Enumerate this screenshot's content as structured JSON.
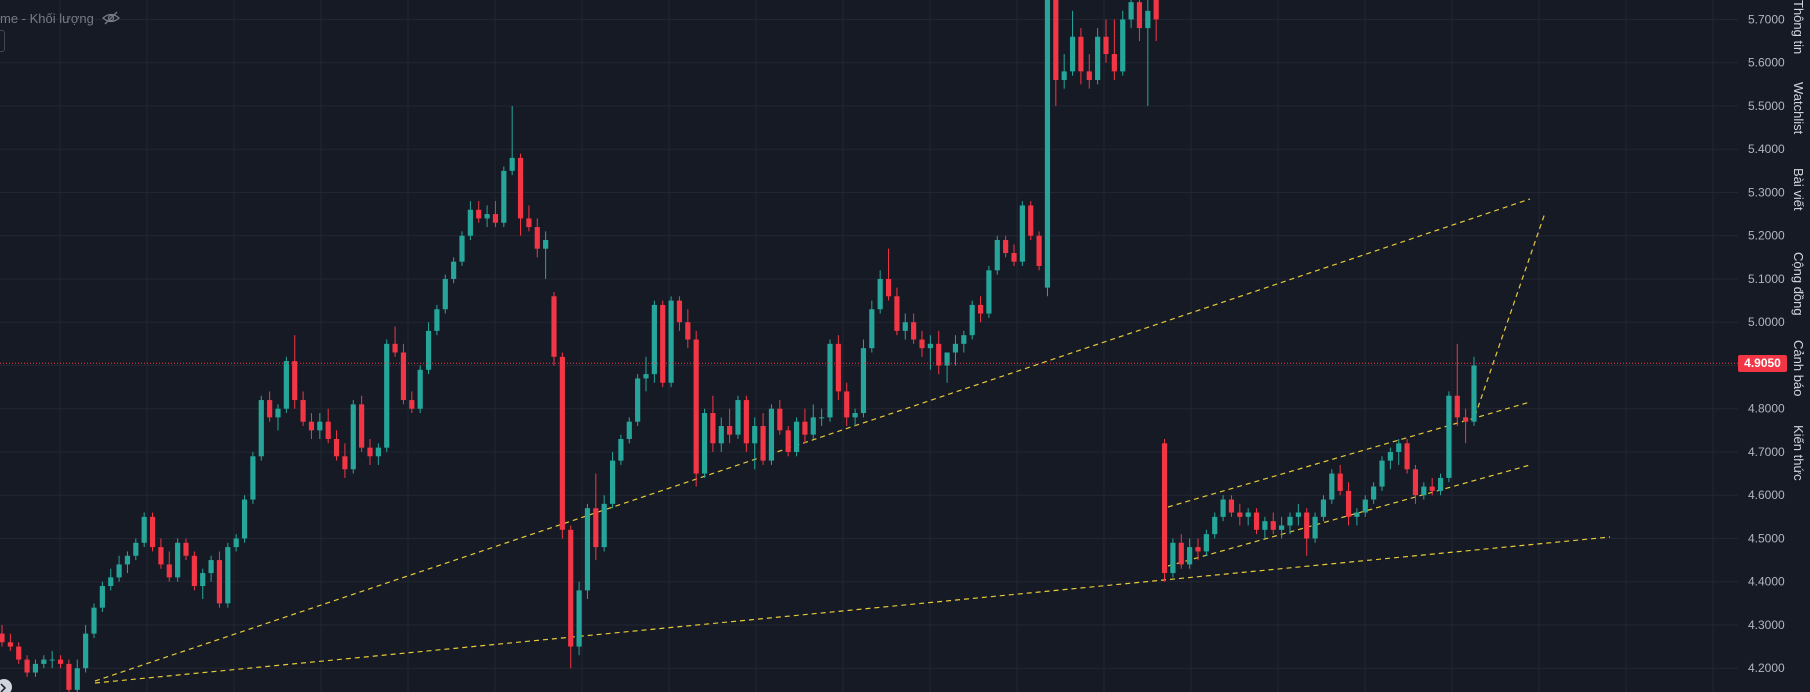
{
  "legend": {
    "label": "me - Khối lượng",
    "eye_icon": "eye-off-icon"
  },
  "sidebar": {
    "tabs": [
      {
        "label": "Thông tin"
      },
      {
        "label": "Watchlist"
      },
      {
        "label": "Bài viết"
      },
      {
        "label": "Cộng đồng"
      },
      {
        "label": "Cảnh báo"
      },
      {
        "label": "Kiến thức"
      }
    ]
  },
  "price_axis": {
    "current_price": "4.9050",
    "current_price_color": "#f23645"
  },
  "colors": {
    "up": "#26a69a",
    "down": "#f23645",
    "background": "#161a25",
    "drawing": "#e5c93a"
  },
  "chart_data": {
    "type": "candlestick",
    "title": "",
    "y_ticks": [
      "5.7000",
      "5.6000",
      "5.5000",
      "5.4000",
      "5.3000",
      "5.2000",
      "5.1000",
      "5.0000",
      "4.9000",
      "4.8000",
      "4.7000",
      "4.6000",
      "4.5000",
      "4.4000",
      "4.3000",
      "4.2000"
    ],
    "ylim": [
      4.145,
      5.745
    ],
    "grid": true,
    "last_price": 4.905,
    "candles": [
      [
        4.28,
        4.3,
        4.25,
        4.26
      ],
      [
        4.26,
        4.28,
        4.24,
        4.25
      ],
      [
        4.25,
        4.26,
        4.21,
        4.22
      ],
      [
        4.22,
        4.23,
        4.18,
        4.19
      ],
      [
        4.19,
        4.22,
        4.18,
        4.21
      ],
      [
        4.21,
        4.23,
        4.2,
        4.22
      ],
      [
        4.22,
        4.24,
        4.2,
        4.22
      ],
      [
        4.22,
        4.23,
        4.2,
        4.21
      ],
      [
        4.21,
        4.22,
        4.14,
        4.15
      ],
      [
        4.15,
        4.22,
        4.14,
        4.2
      ],
      [
        4.2,
        4.3,
        4.19,
        4.28
      ],
      [
        4.28,
        4.35,
        4.27,
        4.34
      ],
      [
        4.34,
        4.4,
        4.33,
        4.39
      ],
      [
        4.39,
        4.43,
        4.38,
        4.41
      ],
      [
        4.41,
        4.46,
        4.4,
        4.44
      ],
      [
        4.44,
        4.47,
        4.42,
        4.46
      ],
      [
        4.46,
        4.5,
        4.45,
        4.49
      ],
      [
        4.49,
        4.56,
        4.48,
        4.55
      ],
      [
        4.55,
        4.56,
        4.47,
        4.48
      ],
      [
        4.48,
        4.5,
        4.43,
        4.44
      ],
      [
        4.44,
        4.47,
        4.4,
        4.41
      ],
      [
        4.41,
        4.5,
        4.4,
        4.49
      ],
      [
        4.49,
        4.5,
        4.45,
        4.46
      ],
      [
        4.46,
        4.47,
        4.38,
        4.39
      ],
      [
        4.39,
        4.43,
        4.36,
        4.42
      ],
      [
        4.42,
        4.46,
        4.4,
        4.45
      ],
      [
        4.45,
        4.47,
        4.34,
        4.35
      ],
      [
        4.35,
        4.49,
        4.34,
        4.48
      ],
      [
        4.48,
        4.51,
        4.47,
        4.5
      ],
      [
        4.5,
        4.6,
        4.49,
        4.59
      ],
      [
        4.59,
        4.7,
        4.58,
        4.69
      ],
      [
        4.69,
        4.83,
        4.68,
        4.82
      ],
      [
        4.82,
        4.84,
        4.77,
        4.78
      ],
      [
        4.78,
        4.81,
        4.75,
        4.8
      ],
      [
        4.8,
        4.92,
        4.79,
        4.91
      ],
      [
        4.91,
        4.97,
        4.8,
        4.82
      ],
      [
        4.82,
        4.84,
        4.76,
        4.77
      ],
      [
        4.77,
        4.79,
        4.73,
        4.75
      ],
      [
        4.75,
        4.79,
        4.73,
        4.77
      ],
      [
        4.77,
        4.8,
        4.72,
        4.73
      ],
      [
        4.73,
        4.75,
        4.68,
        4.69
      ],
      [
        4.69,
        4.72,
        4.64,
        4.66
      ],
      [
        4.66,
        4.82,
        4.65,
        4.81
      ],
      [
        4.81,
        4.83,
        4.7,
        4.71
      ],
      [
        4.71,
        4.73,
        4.67,
        4.69
      ],
      [
        4.69,
        4.72,
        4.67,
        4.71
      ],
      [
        4.71,
        4.96,
        4.7,
        4.95
      ],
      [
        4.95,
        4.99,
        4.92,
        4.93
      ],
      [
        4.93,
        4.95,
        4.81,
        4.82
      ],
      [
        4.82,
        4.84,
        4.79,
        4.8
      ],
      [
        4.8,
        4.9,
        4.79,
        4.89
      ],
      [
        4.89,
        5.0,
        4.88,
        4.98
      ],
      [
        4.98,
        5.04,
        4.97,
        5.03
      ],
      [
        5.03,
        5.11,
        5.02,
        5.1
      ],
      [
        5.1,
        5.15,
        5.09,
        5.14
      ],
      [
        5.14,
        5.21,
        5.13,
        5.2
      ],
      [
        5.2,
        5.28,
        5.19,
        5.26
      ],
      [
        5.26,
        5.28,
        5.23,
        5.24
      ],
      [
        5.24,
        5.27,
        5.22,
        5.25
      ],
      [
        5.25,
        5.28,
        5.22,
        5.23
      ],
      [
        5.23,
        5.36,
        5.22,
        5.35
      ],
      [
        5.35,
        5.5,
        5.34,
        5.38
      ],
      [
        5.38,
        5.39,
        5.2,
        5.24
      ],
      [
        5.24,
        5.27,
        5.21,
        5.22
      ],
      [
        5.22,
        5.24,
        5.15,
        5.17
      ],
      [
        5.17,
        5.21,
        5.1,
        5.19
      ],
      [
        5.06,
        5.07,
        4.9,
        4.92
      ],
      [
        4.92,
        4.93,
        4.5,
        4.52
      ],
      [
        4.52,
        4.53,
        4.2,
        4.25
      ],
      [
        4.25,
        4.4,
        4.23,
        4.38
      ],
      [
        4.38,
        4.58,
        4.36,
        4.57
      ],
      [
        4.57,
        4.65,
        4.45,
        4.48
      ],
      [
        4.48,
        4.6,
        4.47,
        4.58
      ],
      [
        4.58,
        4.7,
        4.57,
        4.68
      ],
      [
        4.68,
        4.74,
        4.67,
        4.73
      ],
      [
        4.73,
        4.78,
        4.72,
        4.77
      ],
      [
        4.77,
        4.88,
        4.76,
        4.87
      ],
      [
        4.87,
        4.92,
        4.84,
        4.88
      ],
      [
        4.88,
        5.05,
        4.86,
        5.04
      ],
      [
        5.04,
        5.05,
        4.85,
        4.86
      ],
      [
        4.86,
        5.06,
        4.85,
        5.05
      ],
      [
        5.05,
        5.06,
        4.98,
        5.0
      ],
      [
        5.0,
        5.03,
        4.94,
        4.96
      ],
      [
        4.96,
        4.98,
        4.62,
        4.65
      ],
      [
        4.65,
        4.8,
        4.64,
        4.79
      ],
      [
        4.79,
        4.83,
        4.7,
        4.72
      ],
      [
        4.72,
        4.78,
        4.7,
        4.76
      ],
      [
        4.76,
        4.8,
        4.72,
        4.74
      ],
      [
        4.74,
        4.83,
        4.73,
        4.82
      ],
      [
        4.82,
        4.83,
        4.7,
        4.72
      ],
      [
        4.72,
        4.78,
        4.66,
        4.76
      ],
      [
        4.76,
        4.79,
        4.67,
        4.68
      ],
      [
        4.68,
        4.81,
        4.67,
        4.8
      ],
      [
        4.8,
        4.82,
        4.74,
        4.75
      ],
      [
        4.75,
        4.76,
        4.69,
        4.7
      ],
      [
        4.7,
        4.78,
        4.69,
        4.77
      ],
      [
        4.77,
        4.8,
        4.72,
        4.74
      ],
      [
        4.74,
        4.81,
        4.73,
        4.78
      ],
      [
        4.78,
        4.8,
        4.76,
        4.78
      ],
      [
        4.78,
        4.96,
        4.77,
        4.95
      ],
      [
        4.95,
        4.97,
        4.82,
        4.84
      ],
      [
        4.84,
        4.86,
        4.76,
        4.78
      ],
      [
        4.78,
        4.8,
        4.76,
        4.79
      ],
      [
        4.79,
        4.96,
        4.78,
        4.94
      ],
      [
        4.94,
        5.05,
        4.93,
        5.03
      ],
      [
        5.03,
        5.12,
        5.02,
        5.1
      ],
      [
        5.1,
        5.17,
        5.05,
        5.06
      ],
      [
        5.06,
        5.08,
        4.97,
        4.98
      ],
      [
        4.98,
        5.02,
        4.96,
        5.0
      ],
      [
        5.0,
        5.02,
        4.95,
        4.96
      ],
      [
        4.96,
        4.98,
        4.92,
        4.94
      ],
      [
        4.94,
        4.97,
        4.89,
        4.95
      ],
      [
        4.95,
        4.98,
        4.88,
        4.9
      ],
      [
        4.9,
        4.92,
        4.86,
        4.93
      ],
      [
        4.93,
        4.97,
        4.9,
        4.95
      ],
      [
        4.95,
        4.98,
        4.93,
        4.97
      ],
      [
        4.97,
        5.05,
        4.96,
        5.04
      ],
      [
        5.04,
        5.06,
        5.0,
        5.02
      ],
      [
        5.02,
        5.13,
        5.01,
        5.12
      ],
      [
        5.12,
        5.2,
        5.11,
        5.19
      ],
      [
        5.19,
        5.2,
        5.15,
        5.16
      ],
      [
        5.16,
        5.18,
        5.13,
        5.14
      ],
      [
        5.14,
        5.28,
        5.13,
        5.27
      ],
      [
        5.27,
        5.28,
        5.19,
        5.2
      ],
      [
        5.2,
        5.21,
        5.12,
        5.13
      ],
      [
        5.08,
        5.76,
        5.06,
        5.75
      ],
      [
        5.75,
        5.8,
        5.5,
        5.56
      ],
      [
        5.56,
        5.62,
        5.54,
        5.58
      ],
      [
        5.58,
        5.72,
        5.57,
        5.66
      ],
      [
        5.66,
        5.68,
        5.55,
        5.58
      ],
      [
        5.58,
        5.62,
        5.54,
        5.56
      ],
      [
        5.56,
        5.68,
        5.55,
        5.66
      ],
      [
        5.66,
        5.7,
        5.6,
        5.62
      ],
      [
        5.62,
        5.7,
        5.56,
        5.58
      ],
      [
        5.58,
        5.72,
        5.57,
        5.7
      ],
      [
        5.7,
        5.76,
        5.68,
        5.74
      ],
      [
        5.74,
        5.77,
        5.65,
        5.68
      ],
      [
        5.68,
        5.75,
        5.5,
        5.72
      ],
      [
        5.76,
        5.77,
        5.65,
        5.7
      ],
      [
        4.72,
        4.73,
        4.4,
        4.42
      ],
      [
        4.42,
        4.5,
        4.41,
        4.49
      ],
      [
        4.49,
        4.51,
        4.43,
        4.44
      ],
      [
        4.44,
        4.5,
        4.43,
        4.48
      ],
      [
        4.48,
        4.5,
        4.45,
        4.47
      ],
      [
        4.47,
        4.52,
        4.46,
        4.51
      ],
      [
        4.51,
        4.56,
        4.5,
        4.55
      ],
      [
        4.55,
        4.6,
        4.54,
        4.59
      ],
      [
        4.59,
        4.6,
        4.55,
        4.56
      ],
      [
        4.56,
        4.58,
        4.53,
        4.55
      ],
      [
        4.55,
        4.57,
        4.53,
        4.56
      ],
      [
        4.56,
        4.57,
        4.51,
        4.52
      ],
      [
        4.52,
        4.55,
        4.5,
        4.54
      ],
      [
        4.54,
        4.56,
        4.51,
        4.52
      ],
      [
        4.52,
        4.55,
        4.5,
        4.53
      ],
      [
        4.53,
        4.56,
        4.51,
        4.55
      ],
      [
        4.55,
        4.58,
        4.53,
        4.56
      ],
      [
        4.56,
        4.57,
        4.46,
        4.5
      ],
      [
        4.5,
        4.56,
        4.49,
        4.55
      ],
      [
        4.55,
        4.6,
        4.54,
        4.59
      ],
      [
        4.59,
        4.66,
        4.58,
        4.65
      ],
      [
        4.65,
        4.67,
        4.6,
        4.61
      ],
      [
        4.61,
        4.63,
        4.53,
        4.55
      ],
      [
        4.55,
        4.57,
        4.53,
        4.56
      ],
      [
        4.56,
        4.6,
        4.55,
        4.59
      ],
      [
        4.59,
        4.63,
        4.58,
        4.62
      ],
      [
        4.62,
        4.69,
        4.61,
        4.68
      ],
      [
        4.68,
        4.71,
        4.66,
        4.7
      ],
      [
        4.7,
        4.73,
        4.67,
        4.72
      ],
      [
        4.72,
        4.73,
        4.65,
        4.66
      ],
      [
        4.66,
        4.67,
        4.58,
        4.6
      ],
      [
        4.6,
        4.63,
        4.59,
        4.62
      ],
      [
        4.62,
        4.64,
        4.6,
        4.61
      ],
      [
        4.61,
        4.65,
        4.6,
        4.64
      ],
      [
        4.64,
        4.84,
        4.63,
        4.83
      ],
      [
        4.83,
        4.95,
        4.76,
        4.78
      ],
      [
        4.78,
        4.8,
        4.72,
        4.77
      ],
      [
        4.77,
        4.92,
        4.76,
        4.9
      ]
    ]
  }
}
